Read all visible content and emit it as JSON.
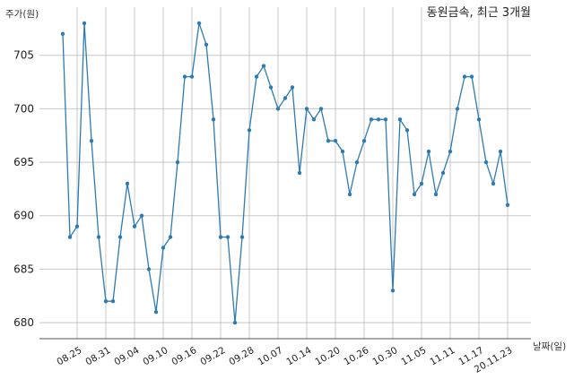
{
  "chart_data": {
    "type": "line",
    "title": "동원금속, 최근 3개월",
    "ylabel": "주가(원)",
    "xlabel": "날짜(일)",
    "ylim": [
      678.5,
      709.5
    ],
    "yticks": [
      680,
      685,
      690,
      695,
      700,
      705
    ],
    "grid": true,
    "color": "#2f7bb0",
    "xtick_labels": [
      "08.25",
      "08.31",
      "09.04",
      "09.10",
      "09.16",
      "09.22",
      "09.28",
      "10.07",
      "10.14",
      "10.20",
      "10.26",
      "10.30",
      "11.05",
      "11.11",
      "11.17",
      "20.11.23"
    ],
    "xtick_index": [
      2,
      6,
      10,
      14,
      18,
      22,
      26,
      30,
      34,
      38,
      42,
      46,
      50,
      54,
      58,
      62
    ],
    "series": [
      {
        "values": [
          707,
          688,
          689,
          708,
          697,
          688,
          682,
          682,
          688,
          693,
          689,
          690,
          685,
          681,
          687,
          688,
          695,
          703,
          703,
          708,
          706,
          699,
          688,
          688,
          680,
          688,
          698,
          703,
          704,
          702,
          700,
          701,
          702,
          694,
          700,
          699,
          700,
          697,
          697,
          696,
          692,
          695,
          697,
          699,
          699,
          699,
          683,
          699,
          698,
          692,
          693,
          696,
          692,
          694,
          696,
          700,
          703,
          703,
          699,
          695,
          693,
          696,
          691
        ]
      }
    ]
  }
}
